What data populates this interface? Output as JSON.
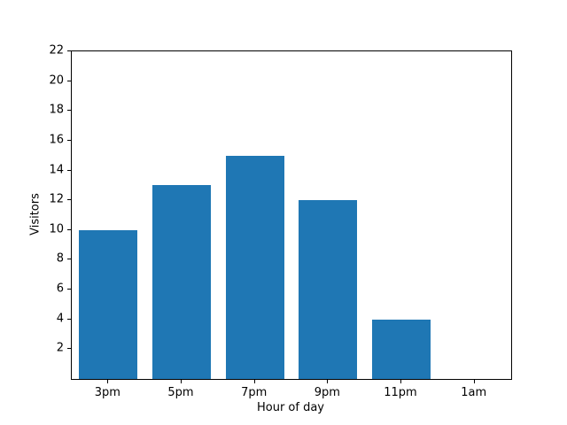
{
  "figure": {
    "background": "#ffffff",
    "frame_color": "#000000",
    "text_color": "#000000"
  },
  "chart_data": {
    "type": "bar",
    "categories": [
      "3pm",
      "5pm",
      "7pm",
      "9pm",
      "11pm",
      "1am"
    ],
    "values": [
      10,
      13,
      15,
      12,
      4,
      0
    ],
    "title": "",
    "xlabel": "Hour of day",
    "ylabel": "Visitors",
    "ylim": [
      0,
      22
    ],
    "yticks": [
      2,
      4,
      6,
      8,
      10,
      12,
      14,
      16,
      18,
      20,
      22
    ],
    "bar_color": "#1f77b4",
    "bar_width_fraction": 0.8,
    "grid": false,
    "legend_position": "none"
  }
}
